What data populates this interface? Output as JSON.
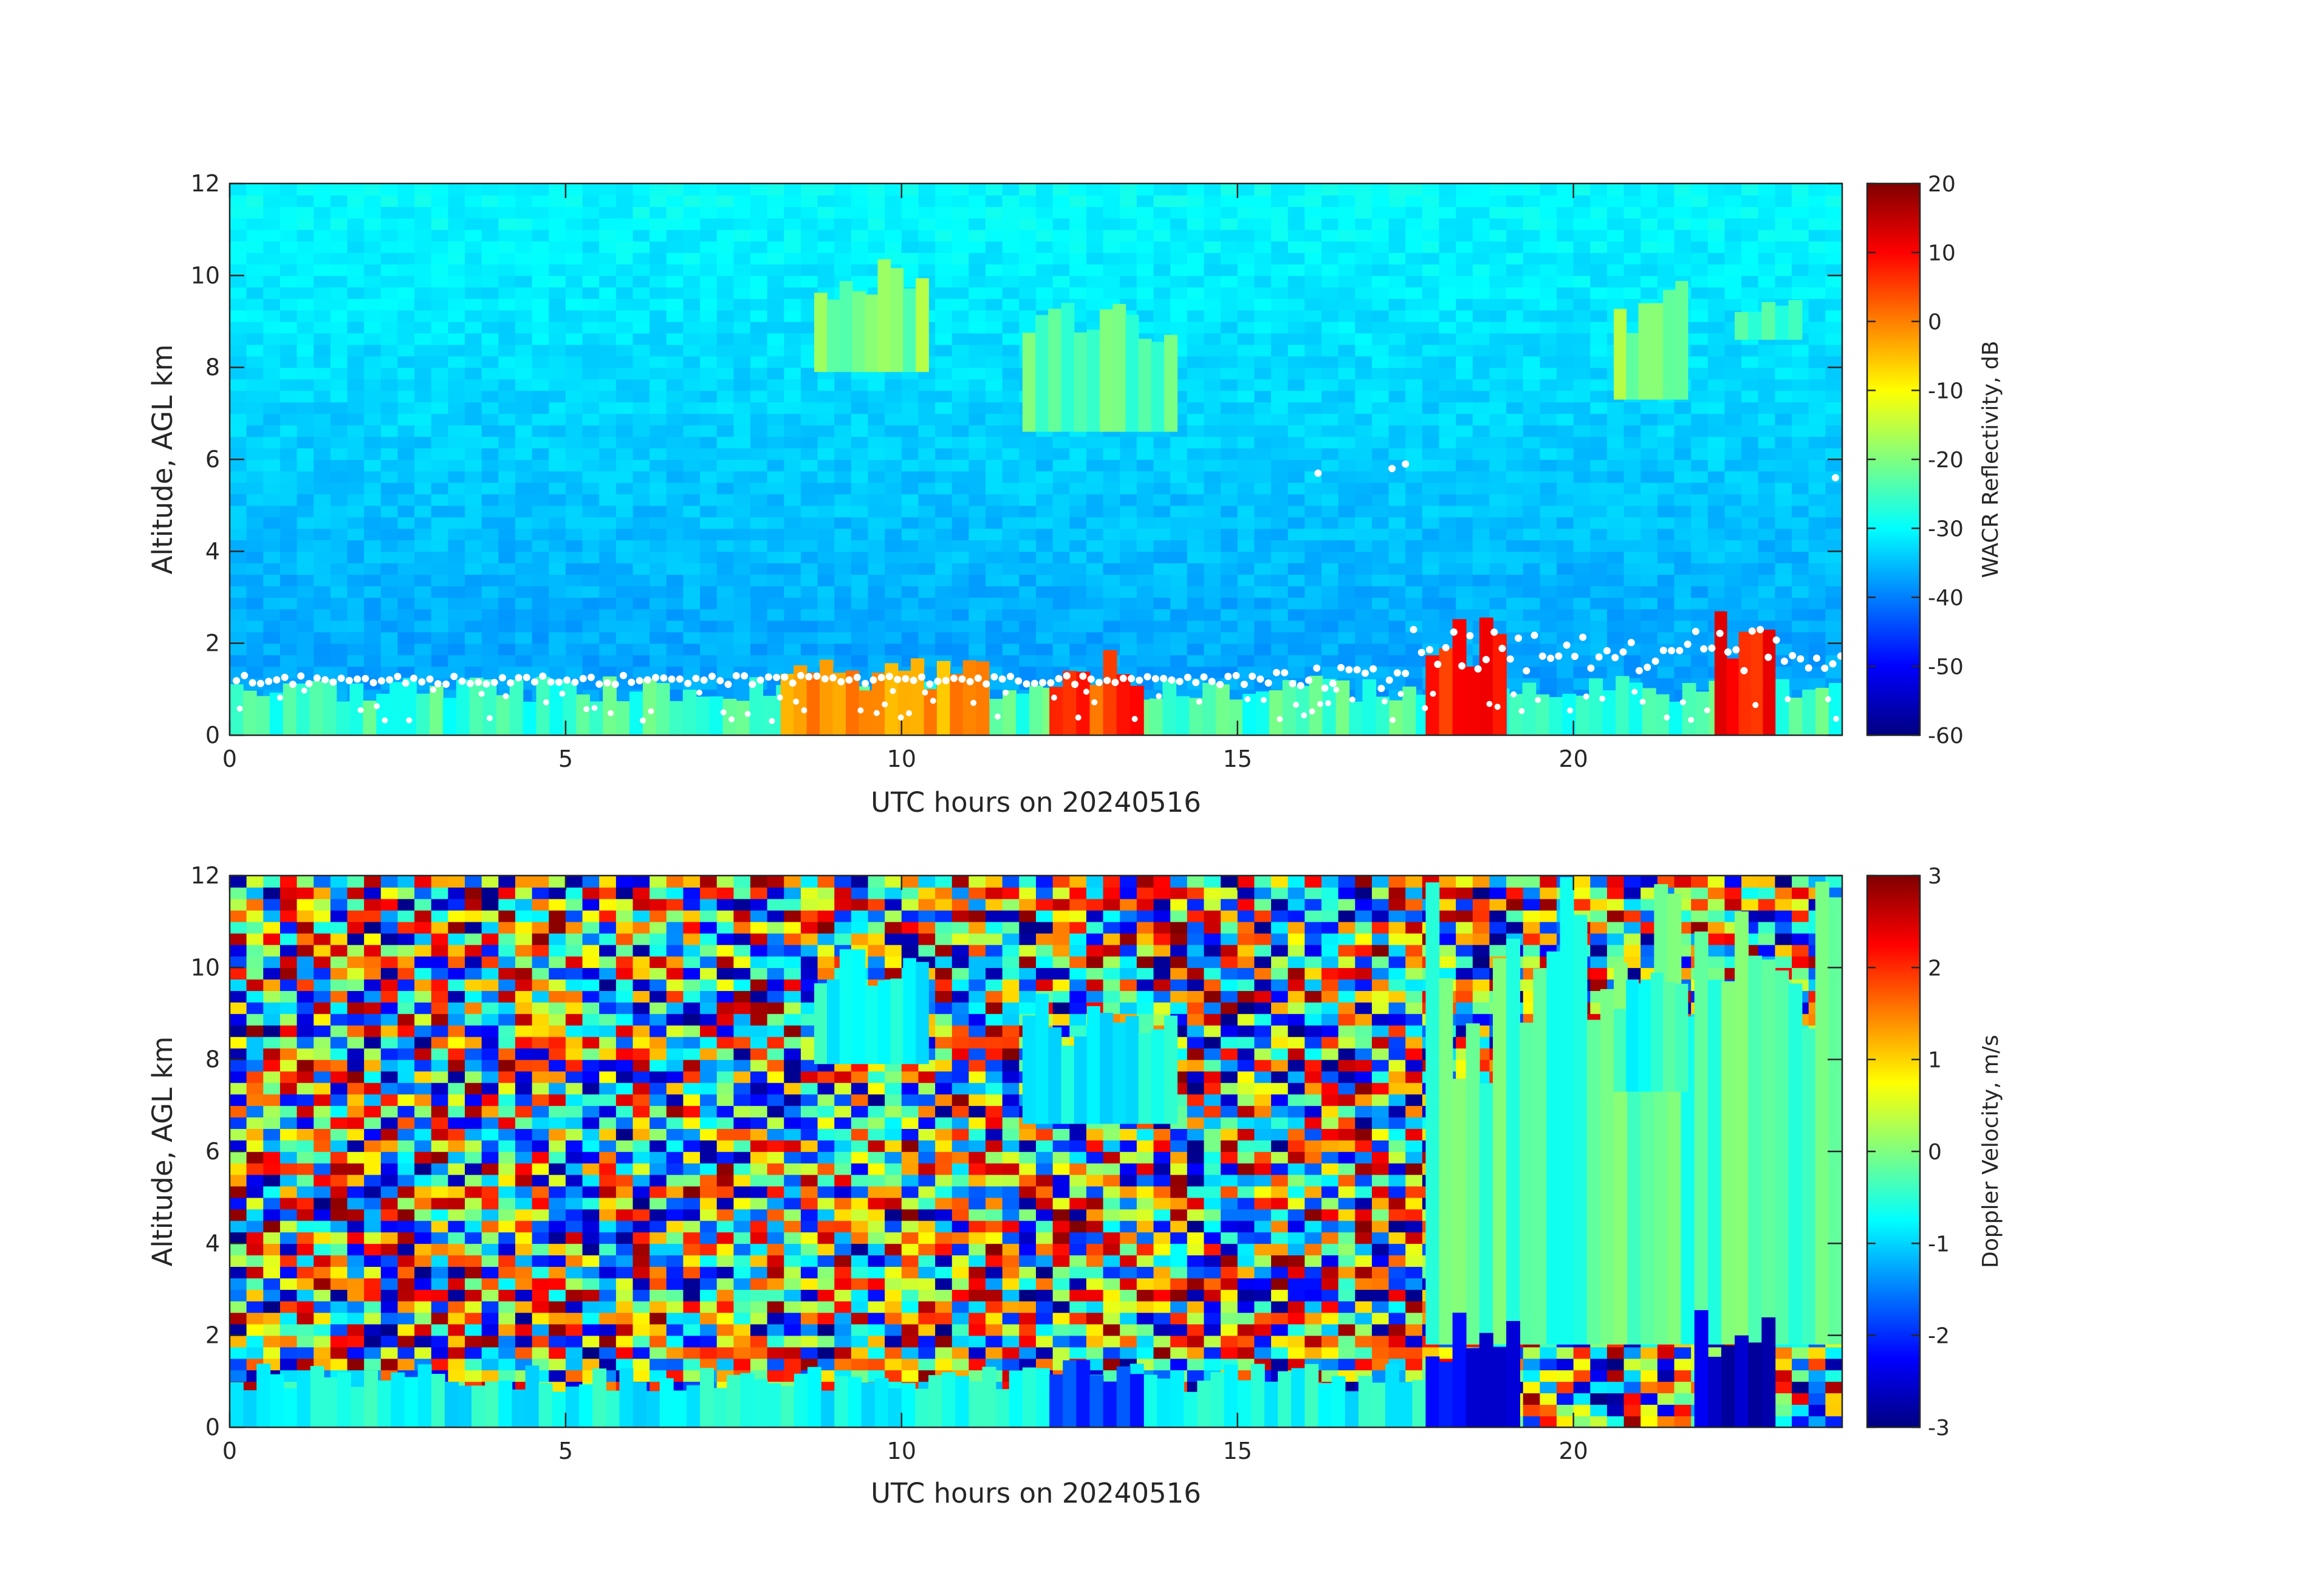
{
  "chart_data": [
    {
      "type": "heatmap",
      "xlabel": "UTC hours on 20240516",
      "ylabel": "Altitude, AGL km",
      "xlim": [
        0,
        24
      ],
      "ylim": [
        0,
        12
      ],
      "xticks": [
        0,
        5,
        10,
        15,
        20
      ],
      "yticks": [
        0,
        2,
        4,
        6,
        8,
        10,
        12
      ],
      "colorbar": {
        "label": "WACR Reflectivity, dB",
        "range": [
          -60,
          20
        ],
        "ticks": [
          20,
          10,
          0,
          -10,
          -20,
          -30,
          -40,
          -50,
          -60
        ],
        "colormap": "jet"
      },
      "overlay": "white cloud-base points",
      "regions": [
        {
          "x0": 0,
          "x1": 24,
          "y0": 0,
          "y1": 1.3,
          "dbz": -25
        },
        {
          "x0": 8.2,
          "x1": 11.3,
          "y0": 0,
          "y1": 1.7,
          "dbz": -3
        },
        {
          "x0": 12.2,
          "x1": 13.6,
          "y0": 0,
          "y1": 1.9,
          "dbz": 5
        },
        {
          "x0": 17.8,
          "x1": 19.0,
          "y0": 0,
          "y1": 2.6,
          "dbz": 8
        },
        {
          "x0": 22.1,
          "x1": 23.0,
          "y0": 0,
          "y1": 2.9,
          "dbz": 10
        },
        {
          "x0": 8.7,
          "x1": 10.4,
          "y0": 7.9,
          "y1": 10.4,
          "dbz": -20
        },
        {
          "x0": 11.8,
          "x1": 14.1,
          "y0": 6.6,
          "y1": 9.6,
          "dbz": -22
        },
        {
          "x0": 20.6,
          "x1": 21.7,
          "y0": 7.3,
          "y1": 9.9,
          "dbz": -20
        },
        {
          "x0": 22.4,
          "x1": 23.4,
          "y0": 8.6,
          "y1": 9.6,
          "dbz": -25
        }
      ]
    },
    {
      "type": "heatmap",
      "xlabel": "UTC hours on 20240516",
      "ylabel": "Altitude, AGL km",
      "xlim": [
        0,
        24
      ],
      "ylim": [
        0,
        12
      ],
      "xticks": [
        0,
        5,
        10,
        15,
        20
      ],
      "yticks": [
        0,
        2,
        4,
        6,
        8,
        10,
        12
      ],
      "colorbar": {
        "label": "Doppler Velocity, m/s",
        "range": [
          -3,
          3
        ],
        "ticks": [
          3,
          2,
          1,
          0,
          -1,
          -2,
          -3
        ],
        "colormap": "jet"
      },
      "regions": [
        {
          "x0": 0,
          "x1": 18.0,
          "y0": 0,
          "y1": 1.4,
          "vel": -0.7
        },
        {
          "x0": 12.2,
          "x1": 13.6,
          "y0": 0,
          "y1": 1.8,
          "vel": -2.0
        },
        {
          "x0": 17.8,
          "x1": 24,
          "y0": 1.8,
          "y1": 12,
          "vel": -0.3
        },
        {
          "x0": 17.8,
          "x1": 19.2,
          "y0": 0,
          "y1": 2.5,
          "vel": -2.2
        },
        {
          "x0": 21.8,
          "x1": 23.0,
          "y0": 0,
          "y1": 2.7,
          "vel": -2.5
        },
        {
          "x0": 8.7,
          "x1": 10.4,
          "y0": 7.9,
          "y1": 10.4,
          "vel": -0.7
        },
        {
          "x0": 11.8,
          "x1": 14.1,
          "y0": 6.6,
          "y1": 9.6,
          "vel": -0.8
        },
        {
          "x0": 20.6,
          "x1": 21.7,
          "y0": 7.3,
          "y1": 9.9,
          "vel": -0.5
        }
      ]
    }
  ]
}
